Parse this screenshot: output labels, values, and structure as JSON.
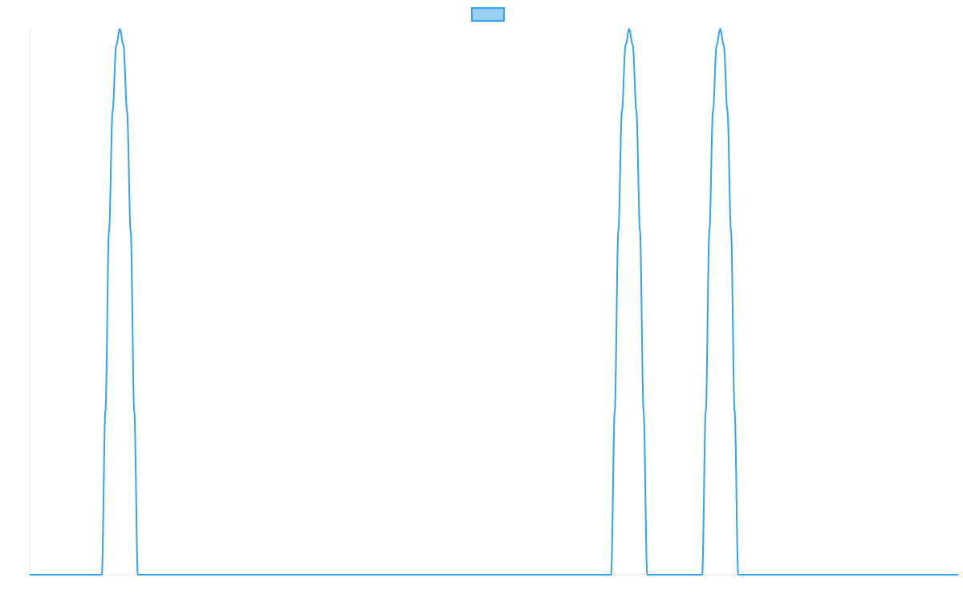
{
  "chart_data": {
    "type": "line",
    "title": "",
    "xlabel": "",
    "ylabel": "",
    "xlim": [
      0,
      1030
    ],
    "ylim": [
      0,
      1
    ],
    "grid": false,
    "legend": "top-center",
    "series": [
      {
        "name": "",
        "color": "#36a2eb",
        "fill": "#9ad0f5",
        "x": [
          0,
          80,
          84,
          88,
          92,
          96,
          100,
          104,
          108,
          112,
          116,
          120,
          645,
          649,
          653,
          657,
          661,
          665,
          669,
          673,
          677,
          681,
          685,
          746,
          750,
          754,
          758,
          762,
          766,
          770,
          774,
          778,
          782,
          786,
          1030
        ],
        "y": [
          0,
          0,
          0.3,
          0.63,
          0.85,
          0.97,
          1,
          0.97,
          0.85,
          0.63,
          0.3,
          0,
          0,
          0.3,
          0.63,
          0.85,
          0.97,
          1,
          0.97,
          0.85,
          0.63,
          0.3,
          0,
          0,
          0.3,
          0.63,
          0.85,
          0.97,
          1,
          0.97,
          0.85,
          0.63,
          0.3,
          0,
          0
        ]
      }
    ]
  }
}
